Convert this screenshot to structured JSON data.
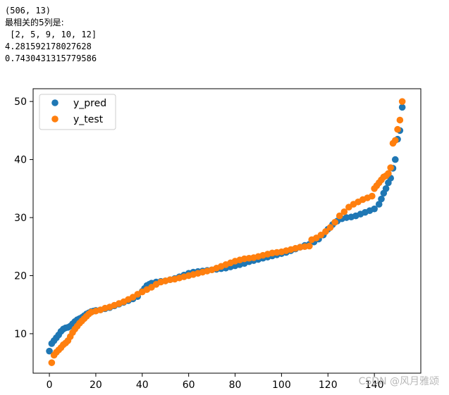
{
  "output_lines": [
    "(506, 13)",
    "最相关的5列是:",
    " [2, 5, 9, 10, 12]",
    "4.281592178027628",
    "0.7430431315779586"
  ],
  "watermark": "CSDN @风月雅颂",
  "colors": {
    "y_pred": "#1f77b4",
    "y_test": "#ff7f0e"
  },
  "chart_data": {
    "type": "scatter",
    "title": "",
    "xlabel": "",
    "ylabel": "",
    "xlim": [
      -7,
      160
    ],
    "ylim": [
      3.2,
      52.2
    ],
    "xticks": [
      0,
      20,
      40,
      60,
      80,
      100,
      120,
      140
    ],
    "yticks": [
      10,
      20,
      30,
      40,
      50
    ],
    "grid": false,
    "legend_position": "upper-left",
    "series": [
      {
        "name": "y_pred",
        "color": "#1f77b4",
        "points": [
          [
            0,
            7.0
          ],
          [
            1,
            8.3
          ],
          [
            2,
            8.8
          ],
          [
            3,
            9.3
          ],
          [
            4,
            9.8
          ],
          [
            5,
            10.4
          ],
          [
            6,
            10.8
          ],
          [
            7,
            11.0
          ],
          [
            8,
            11.1
          ],
          [
            9,
            11.3
          ],
          [
            10,
            11.7
          ],
          [
            11,
            12.1
          ],
          [
            12,
            12.4
          ],
          [
            13,
            12.6
          ],
          [
            14,
            12.8
          ],
          [
            15,
            13.1
          ],
          [
            16,
            13.4
          ],
          [
            17,
            13.6
          ],
          [
            18,
            13.8
          ],
          [
            19,
            13.9
          ],
          [
            20,
            14.0
          ],
          [
            22,
            14.1
          ],
          [
            24,
            14.3
          ],
          [
            26,
            14.5
          ],
          [
            28,
            14.8
          ],
          [
            30,
            15.1
          ],
          [
            32,
            15.4
          ],
          [
            34,
            15.7
          ],
          [
            36,
            16.0
          ],
          [
            38,
            16.4
          ],
          [
            40,
            17.3
          ],
          [
            41,
            17.8
          ],
          [
            42,
            18.3
          ],
          [
            43,
            18.5
          ],
          [
            44,
            18.7
          ],
          [
            46,
            18.9
          ],
          [
            48,
            19.0
          ],
          [
            50,
            19.1
          ],
          [
            52,
            19.3
          ],
          [
            54,
            19.5
          ],
          [
            56,
            19.8
          ],
          [
            58,
            20.1
          ],
          [
            60,
            20.4
          ],
          [
            62,
            20.6
          ],
          [
            64,
            20.7
          ],
          [
            66,
            20.8
          ],
          [
            68,
            20.9
          ],
          [
            70,
            21.0
          ],
          [
            72,
            21.1
          ],
          [
            74,
            21.2
          ],
          [
            76,
            21.3
          ],
          [
            78,
            21.5
          ],
          [
            80,
            21.7
          ],
          [
            82,
            21.9
          ],
          [
            84,
            22.1
          ],
          [
            86,
            22.4
          ],
          [
            88,
            22.6
          ],
          [
            90,
            22.8
          ],
          [
            92,
            23.0
          ],
          [
            94,
            23.2
          ],
          [
            96,
            23.4
          ],
          [
            98,
            23.6
          ],
          [
            100,
            23.8
          ],
          [
            102,
            24.0
          ],
          [
            104,
            24.3
          ],
          [
            106,
            24.6
          ],
          [
            108,
            24.9
          ],
          [
            110,
            25.2
          ],
          [
            112,
            25.4
          ],
          [
            114,
            25.8
          ],
          [
            116,
            26.3
          ],
          [
            118,
            27.0
          ],
          [
            120,
            28.0
          ],
          [
            122,
            28.8
          ],
          [
            124,
            29.4
          ],
          [
            126,
            29.8
          ],
          [
            128,
            30.0
          ],
          [
            130,
            30.1
          ],
          [
            132,
            30.3
          ],
          [
            134,
            30.6
          ],
          [
            136,
            30.9
          ],
          [
            138,
            31.2
          ],
          [
            140,
            31.5
          ],
          [
            142,
            32.3
          ],
          [
            143,
            33.2
          ],
          [
            144,
            34.2
          ],
          [
            145,
            35.0
          ],
          [
            146,
            36.0
          ],
          [
            147,
            36.8
          ],
          [
            148,
            38.5
          ],
          [
            149,
            40.0
          ],
          [
            150,
            43.5
          ],
          [
            151,
            45.0
          ],
          [
            152,
            49.0
          ]
        ]
      },
      {
        "name": "y_test",
        "color": "#ff7f0e",
        "points": [
          [
            1,
            5.0
          ],
          [
            2,
            6.3
          ],
          [
            3,
            6.8
          ],
          [
            4,
            7.2
          ],
          [
            5,
            7.6
          ],
          [
            6,
            8.1
          ],
          [
            7,
            8.4
          ],
          [
            8,
            8.8
          ],
          [
            9,
            9.5
          ],
          [
            10,
            10.2
          ],
          [
            11,
            10.8
          ],
          [
            12,
            11.3
          ],
          [
            13,
            11.8
          ],
          [
            14,
            12.2
          ],
          [
            15,
            12.6
          ],
          [
            16,
            13.0
          ],
          [
            17,
            13.4
          ],
          [
            18,
            13.7
          ],
          [
            20,
            13.9
          ],
          [
            22,
            14.1
          ],
          [
            24,
            14.4
          ],
          [
            26,
            14.6
          ],
          [
            28,
            14.9
          ],
          [
            30,
            15.2
          ],
          [
            32,
            15.5
          ],
          [
            34,
            15.9
          ],
          [
            36,
            16.3
          ],
          [
            38,
            16.8
          ],
          [
            40,
            17.2
          ],
          [
            42,
            17.6
          ],
          [
            44,
            18.0
          ],
          [
            46,
            18.5
          ],
          [
            48,
            18.9
          ],
          [
            50,
            19.1
          ],
          [
            52,
            19.3
          ],
          [
            54,
            19.4
          ],
          [
            56,
            19.6
          ],
          [
            58,
            19.8
          ],
          [
            60,
            20.0
          ],
          [
            62,
            20.2
          ],
          [
            64,
            20.4
          ],
          [
            66,
            20.6
          ],
          [
            68,
            20.8
          ],
          [
            70,
            21.0
          ],
          [
            72,
            21.3
          ],
          [
            74,
            21.6
          ],
          [
            76,
            21.9
          ],
          [
            78,
            22.2
          ],
          [
            80,
            22.5
          ],
          [
            82,
            22.7
          ],
          [
            84,
            22.9
          ],
          [
            86,
            23.0
          ],
          [
            88,
            23.1
          ],
          [
            90,
            23.3
          ],
          [
            92,
            23.5
          ],
          [
            94,
            23.7
          ],
          [
            96,
            23.9
          ],
          [
            98,
            24.0
          ],
          [
            100,
            24.1
          ],
          [
            102,
            24.3
          ],
          [
            104,
            24.5
          ],
          [
            106,
            24.7
          ],
          [
            108,
            24.9
          ],
          [
            110,
            25.0
          ],
          [
            112,
            25.1
          ],
          [
            113,
            26.2
          ],
          [
            115,
            26.5
          ],
          [
            117,
            27.0
          ],
          [
            119,
            27.6
          ],
          [
            121,
            28.3
          ],
          [
            123,
            29.2
          ],
          [
            125,
            30.3
          ],
          [
            127,
            31.0
          ],
          [
            129,
            31.8
          ],
          [
            131,
            32.3
          ],
          [
            133,
            32.7
          ],
          [
            135,
            33.1
          ],
          [
            137,
            33.4
          ],
          [
            139,
            33.7
          ],
          [
            140,
            35.0
          ],
          [
            141,
            35.5
          ],
          [
            142,
            36.0
          ],
          [
            143,
            36.5
          ],
          [
            144,
            37.0
          ],
          [
            145,
            37.2
          ],
          [
            146,
            37.6
          ],
          [
            147,
            38.6
          ],
          [
            148,
            42.8
          ],
          [
            149,
            43.3
          ],
          [
            150,
            45.2
          ],
          [
            151,
            46.8
          ],
          [
            152,
            50.0
          ]
        ]
      }
    ]
  }
}
